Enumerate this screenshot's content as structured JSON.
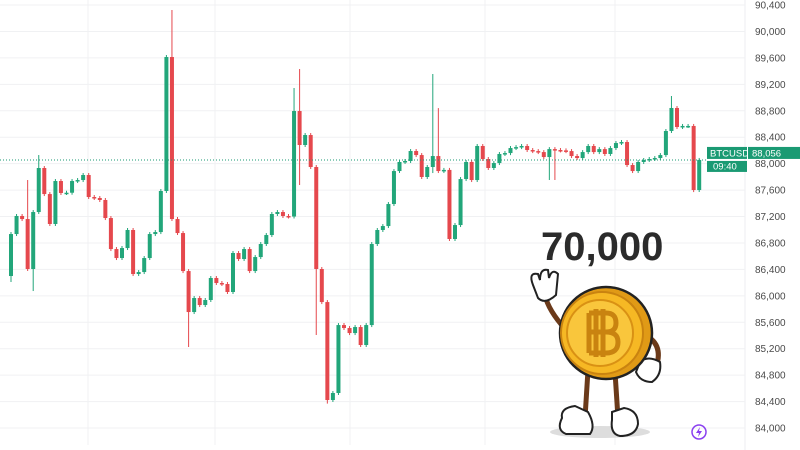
{
  "chart_data": {
    "type": "candlestick",
    "symbol": "BTCUSD",
    "last_price": "88,056",
    "countdown": "09:40",
    "headline": "70,000",
    "ylim": [
      84000,
      90400
    ],
    "yticks": [
      "90,400",
      "90,000",
      "89,600",
      "89,200",
      "88,800",
      "88,400",
      "88,000",
      "87,600",
      "87,200",
      "86,800",
      "86,400",
      "86,000",
      "85,600",
      "85,200",
      "84,800",
      "84,400",
      "84,000"
    ],
    "grid": true,
    "first_open": 86300,
    "close": [
      86935,
      87208,
      87162,
      86406,
      87268,
      87934,
      87540,
      87087,
      87737,
      87556,
      87560,
      87737,
      87752,
      87828,
      87495,
      87480,
      87450,
      87177,
      86708,
      86572,
      86723,
      86996,
      86330,
      86360,
      86572,
      86935,
      86965,
      87586,
      89613,
      87162,
      86950,
      86375,
      85755,
      85967,
      85861,
      85937,
      86270,
      86194,
      86179,
      86058,
      86648,
      86557,
      86708,
      86375,
      86587,
      86784,
      86920,
      87238,
      87268,
      87208,
      87200,
      88796,
      88282,
      88433,
      87949,
      86406,
      85906,
      84424,
      84530,
      85558,
      85513,
      85437,
      85528,
      85256,
      85558,
      86784,
      86996,
      87056,
      87389,
      87888,
      88025,
      88040,
      88191,
      88130,
      87798,
      87949,
      88115,
      87888,
      87905,
      86860,
      87071,
      87767,
      88025,
      87752,
      88267,
      88070,
      87934,
      88009,
      88146,
      88160,
      88236,
      88250,
      88267,
      88206,
      88190,
      88175,
      88100,
      88220,
      88206,
      88200,
      88190,
      88115,
      88085,
      88175,
      88267,
      88175,
      88220,
      88146,
      88236,
      88312,
      88327,
      87979,
      87888,
      88025,
      88055,
      88070,
      88085,
      88130,
      88494,
      88842,
      88554,
      88570,
      88570,
      87601,
      88056
    ],
    "wick_extremes": {
      "1": [
        86935,
        86240
      ],
      "4": [
        87722,
        86406
      ],
      "5": [
        87268,
        86103
      ],
      "6": [
        88100,
        87268
      ],
      "30": [
        90294,
        87162
      ],
      "33": [
        86375,
        85256
      ],
      "52": [
        89114,
        87200
      ],
      "53": [
        89401,
        87707
      ],
      "56": [
        87949,
        85437
      ],
      "58": [
        85906,
        84400
      ],
      "77": [
        89326,
        87888
      ],
      "78": [
        88810,
        87888
      ],
      "98": [
        88220,
        87783
      ],
      "99": [
        88220,
        87783
      ],
      "120": [
        88993,
        88494
      ],
      "124": [
        88570,
        87600
      ]
    },
    "colors": {
      "up": "#22a67a",
      "down": "#e5484d",
      "tag": "#1a9a73",
      "icon": "#8a3ff0"
    }
  }
}
